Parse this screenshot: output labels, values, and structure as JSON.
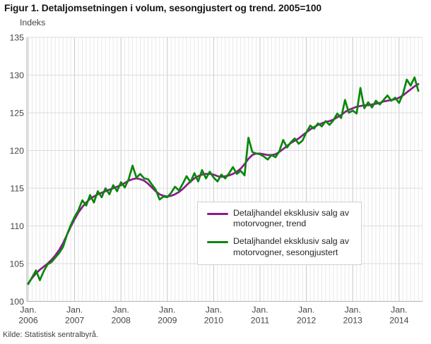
{
  "footer": {
    "source": "Kilde: Statistisk sentralbyrå."
  },
  "chart_data": {
    "type": "line",
    "title": "Figur 1. Detaljomsetningen i volum, sesongjustert og trend. 2005=100",
    "xlabel": "",
    "ylabel": "Indeks",
    "ylim": [
      100,
      135
    ],
    "y_ticks": [
      100,
      105,
      110,
      115,
      120,
      125,
      130,
      135
    ],
    "x_ticks": [
      {
        "label": "Jan.",
        "year": "2006"
      },
      {
        "label": "Jan.",
        "year": "2007"
      },
      {
        "label": "Jan.",
        "year": "2008"
      },
      {
        "label": "Jan.",
        "year": "2009"
      },
      {
        "label": "Jan.",
        "year": "2010"
      },
      {
        "label": "Jan.",
        "year": "2011"
      },
      {
        "label": "Jan.",
        "year": "2012"
      },
      {
        "label": "Jan.",
        "year": "2013"
      },
      {
        "label": "Jan.",
        "year": "2014"
      }
    ],
    "x_start": "Jan. 2006",
    "x_end": "Jun. 2014",
    "frequency": "monthly",
    "grid": {
      "horizontal": "every 5 index points",
      "vertical": "every month, darker at January"
    },
    "legend_position": "inside center-right box",
    "series": [
      {
        "name": "Detaljhandel eksklusiv salg av motorvogner, trend",
        "color": "#8a1b8a",
        "values": [
          102.4,
          103.1,
          103.7,
          104.2,
          104.6,
          105.0,
          105.5,
          106.1,
          106.8,
          107.7,
          108.8,
          109.9,
          110.9,
          111.8,
          112.5,
          113.1,
          113.6,
          113.9,
          114.2,
          114.4,
          114.6,
          114.8,
          115.0,
          115.2,
          115.4,
          115.7,
          116.0,
          116.2,
          116.3,
          116.2,
          116.0,
          115.6,
          115.1,
          114.6,
          114.2,
          114.0,
          113.9,
          114.0,
          114.2,
          114.5,
          114.9,
          115.4,
          115.9,
          116.3,
          116.6,
          116.8,
          116.9,
          116.9,
          116.8,
          116.6,
          116.5,
          116.6,
          116.7,
          116.9,
          117.2,
          117.6,
          118.2,
          118.9,
          119.4,
          119.6,
          119.6,
          119.5,
          119.4,
          119.4,
          119.5,
          119.8,
          120.2,
          120.6,
          121.0,
          121.3,
          121.6,
          122.0,
          122.4,
          122.8,
          123.1,
          123.4,
          123.6,
          123.8,
          123.9,
          124.1,
          124.4,
          124.7,
          125.1,
          125.4,
          125.6,
          125.8,
          125.9,
          126.0,
          126.0,
          126.1,
          126.2,
          126.3,
          126.5,
          126.6,
          126.7,
          126.8,
          127.0,
          127.3,
          127.7,
          128.1,
          128.5,
          128.8
        ]
      },
      {
        "name": "Detaljhandel eksklusiv salg av motorvogner, sesongjustert",
        "color": "#0a870a",
        "values": [
          102.3,
          103.2,
          104.1,
          102.8,
          104.0,
          104.9,
          105.2,
          105.8,
          106.4,
          107.2,
          108.8,
          110.1,
          111.2,
          112.1,
          113.4,
          112.7,
          114.1,
          113.1,
          114.6,
          113.8,
          115.0,
          114.2,
          115.4,
          114.6,
          115.8,
          115.1,
          116.2,
          118.0,
          116.4,
          116.9,
          116.3,
          116.2,
          115.5,
          114.8,
          113.5,
          113.9,
          113.8,
          114.4,
          115.2,
          114.7,
          115.6,
          116.6,
          115.8,
          117.0,
          115.9,
          117.4,
          116.3,
          117.2,
          116.4,
          115.9,
          116.8,
          116.3,
          117.0,
          117.8,
          116.9,
          117.3,
          116.7,
          121.7,
          119.8,
          119.6,
          119.5,
          119.2,
          118.8,
          119.4,
          119.1,
          119.9,
          121.4,
          120.4,
          121.1,
          121.6,
          120.9,
          121.3,
          122.4,
          123.3,
          122.9,
          123.6,
          123.2,
          123.9,
          123.4,
          124.0,
          124.9,
          124.3,
          126.7,
          125.0,
          125.3,
          124.9,
          128.3,
          125.6,
          126.4,
          125.7,
          126.6,
          126.1,
          126.7,
          127.3,
          126.6,
          127.0,
          126.3,
          127.5,
          129.4,
          128.6,
          129.7,
          127.9
        ]
      }
    ]
  }
}
